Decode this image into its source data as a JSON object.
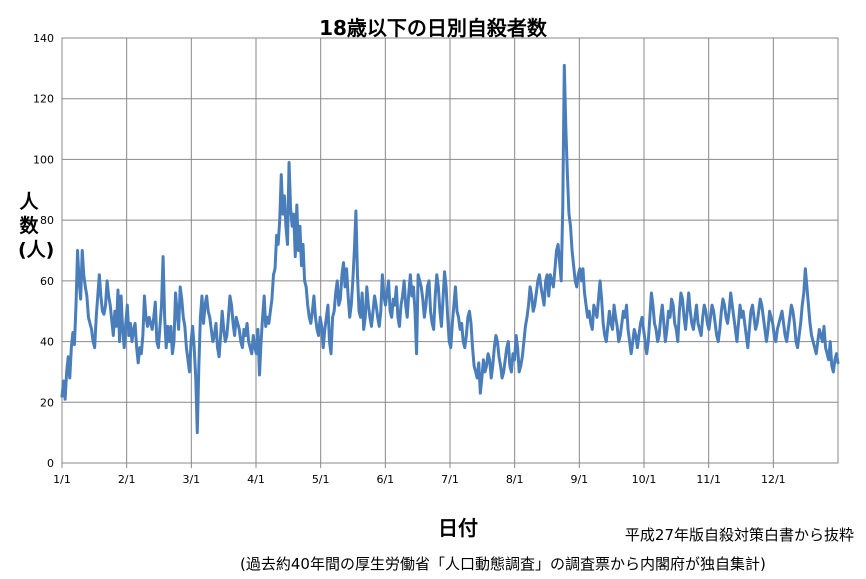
{
  "chart_data": {
    "type": "line",
    "title": "18歳以下の日別自殺者数",
    "xlabel": "日付",
    "ylabel": "人数(人)",
    "source": "平成27年版自殺対策白書から抜粋",
    "note": "(過去約40年間の厚生労働省「人口動態調査」の調査票から内閣府が独自集計)",
    "ylim": [
      0,
      140
    ],
    "yticks": [
      0,
      20,
      40,
      60,
      80,
      100,
      120,
      140
    ],
    "xticks": [
      "1/1",
      "2/1",
      "3/1",
      "4/1",
      "5/1",
      "6/1",
      "7/1",
      "8/1",
      "9/1",
      "10/1",
      "11/1",
      "12/1"
    ],
    "grid": true,
    "line_color": "#4a7ebb",
    "series": [
      {
        "values": [
          22,
          27,
          21,
          30,
          35,
          28,
          38,
          43,
          39,
          52,
          70,
          60,
          54,
          70,
          62,
          58,
          55,
          48,
          46,
          44,
          40,
          38,
          48,
          55,
          62,
          55,
          50,
          49,
          52,
          60,
          55,
          52,
          47,
          42,
          50,
          45,
          57,
          40,
          55,
          44,
          38,
          46,
          52,
          42,
          46,
          40,
          44,
          46,
          38,
          33,
          38,
          36,
          42,
          55,
          48,
          45,
          48,
          46,
          44,
          48,
          53,
          40,
          38,
          45,
          52,
          68,
          48,
          38,
          45,
          40,
          45,
          36,
          40,
          56,
          50,
          44,
          58,
          54,
          48,
          45,
          38,
          34,
          30,
          40,
          45,
          38,
          28,
          10,
          32,
          48,
          55,
          46,
          52,
          55,
          50,
          48,
          44,
          40,
          42,
          46,
          38,
          35,
          42,
          50,
          44,
          40,
          42,
          48,
          55,
          52,
          46,
          42,
          48,
          46,
          44,
          40,
          38,
          44,
          42,
          46,
          40,
          38,
          36,
          42,
          38,
          36,
          44,
          29,
          40,
          48,
          55,
          45,
          48,
          46,
          50,
          54,
          62,
          64,
          75,
          72,
          80,
          95,
          82,
          88,
          78,
          72,
          99,
          84,
          78,
          82,
          68,
          85,
          70,
          78,
          65,
          72,
          60,
          58,
          52,
          48,
          46,
          50,
          55,
          48,
          44,
          42,
          48,
          45,
          38,
          44,
          48,
          52,
          40,
          36,
          48,
          50,
          56,
          60,
          52,
          54,
          62,
          66,
          58,
          64,
          55,
          48,
          52,
          60,
          70,
          83,
          62,
          50,
          48,
          56,
          44,
          48,
          58,
          52,
          48,
          45,
          50,
          55,
          52,
          48,
          45,
          50,
          62,
          55,
          52,
          56,
          60,
          50,
          48,
          54,
          52,
          58,
          48,
          45,
          52,
          55,
          60,
          52,
          48,
          56,
          62,
          55,
          58,
          50,
          36,
          62,
          60,
          58,
          54,
          48,
          52,
          58,
          60,
          50,
          46,
          44,
          55,
          62,
          58,
          50,
          45,
          54,
          63,
          58,
          48,
          40,
          38,
          46,
          52,
          58,
          50,
          48,
          44,
          46,
          40,
          38,
          42,
          48,
          50,
          46,
          38,
          32,
          30,
          28,
          33,
          23,
          28,
          34,
          30,
          32,
          36,
          34,
          28,
          32,
          38,
          42,
          40,
          35,
          32,
          28,
          30,
          34,
          38,
          40,
          32,
          30,
          36,
          34,
          42,
          38,
          30,
          32,
          35,
          40,
          45,
          48,
          52,
          58,
          55,
          50,
          52,
          56,
          60,
          62,
          58,
          55,
          52,
          60,
          62,
          55,
          62,
          60,
          58,
          64,
          70,
          72,
          66,
          60,
          84,
          131,
          110,
          95,
          82,
          78,
          70,
          65,
          60,
          58,
          62,
          64,
          60,
          64,
          56,
          52,
          48,
          50,
          46,
          44,
          52,
          50,
          48,
          54,
          60,
          54,
          46,
          42,
          40,
          45,
          50,
          46,
          44,
          52,
          48,
          45,
          40,
          42,
          46,
          50,
          48,
          52,
          44,
          40,
          36,
          40,
          44,
          42,
          38,
          42,
          46,
          48,
          44,
          40,
          36,
          40,
          48,
          56,
          52,
          46,
          44,
          40,
          42,
          48,
          52,
          46,
          40,
          44,
          50,
          48,
          54,
          52,
          46,
          44,
          40,
          50,
          56,
          54,
          48,
          44,
          50,
          56,
          50,
          46,
          44,
          48,
          52,
          46,
          44,
          42,
          48,
          52,
          50,
          46,
          44,
          48,
          52,
          50,
          46,
          42,
          40,
          44,
          50,
          54,
          52,
          48,
          46,
          50,
          56,
          52,
          48,
          44,
          40,
          46,
          52,
          48,
          50,
          46,
          42,
          38,
          44,
          50,
          52,
          48,
          44,
          46,
          50,
          54,
          52,
          48,
          44,
          40,
          44,
          50,
          48,
          46,
          42,
          40,
          44,
          46,
          48,
          50,
          46,
          42,
          40,
          44,
          48,
          52,
          50,
          46,
          40,
          38,
          42,
          46,
          52,
          56,
          64,
          58,
          52,
          46,
          42,
          40,
          38,
          36,
          40,
          44,
          42,
          40,
          45,
          38,
          36,
          34,
          40,
          32,
          30,
          34,
          36,
          33
        ]
      }
    ]
  }
}
